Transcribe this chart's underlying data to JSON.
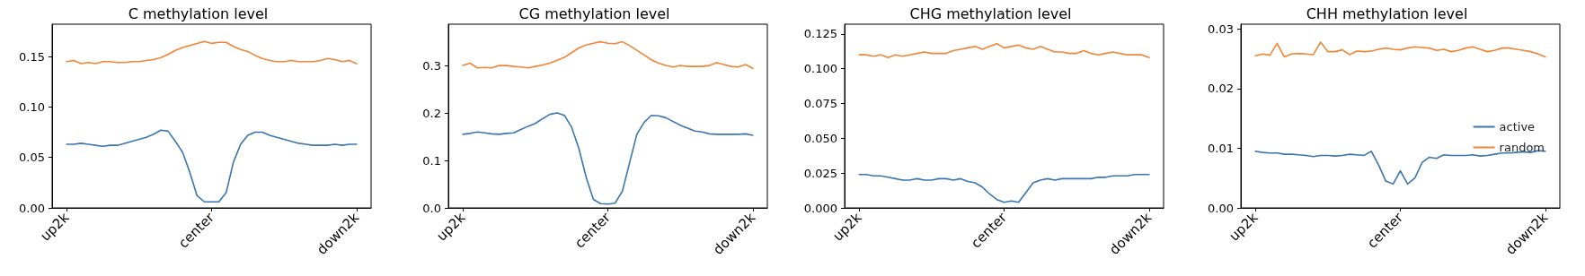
{
  "chart_data": [
    {
      "type": "line",
      "title": "C methylation level",
      "categories": [
        "up2k",
        null,
        null,
        null,
        null,
        null,
        null,
        null,
        null,
        null,
        null,
        null,
        null,
        null,
        null,
        null,
        null,
        null,
        null,
        null,
        "center",
        null,
        null,
        null,
        null,
        null,
        null,
        null,
        null,
        null,
        null,
        null,
        null,
        null,
        null,
        null,
        null,
        null,
        null,
        null,
        "down2k"
      ],
      "ylim": [
        0,
        0.182
      ],
      "yticks": [
        {
          "value": 0,
          "label": "0.00"
        },
        {
          "value": 0.05,
          "label": "0.05"
        },
        {
          "value": 0.1,
          "label": "0.10"
        },
        {
          "value": 0.15,
          "label": "0.15"
        }
      ],
      "grid": false,
      "legend": false,
      "marker": "none",
      "line_style": "solid",
      "series": [
        {
          "color": "#3a75b0",
          "values": [
            0.063,
            0.063,
            0.064,
            0.063,
            0.062,
            0.061,
            0.062,
            0.062,
            0.064,
            0.066,
            0.068,
            0.07,
            0.073,
            0.077,
            0.076,
            0.066,
            0.055,
            0.035,
            0.012,
            0.006,
            0.006,
            0.006,
            0.015,
            0.045,
            0.063,
            0.072,
            0.075,
            0.075,
            0.072,
            0.07,
            0.068,
            0.066,
            0.064,
            0.063,
            0.062,
            0.062,
            0.062,
            0.063,
            0.062,
            0.063,
            0.063
          ]
        },
        {
          "color": "#ef8535",
          "values": [
            0.145,
            0.146,
            0.143,
            0.144,
            0.143,
            0.145,
            0.145,
            0.144,
            0.144,
            0.145,
            0.145,
            0.146,
            0.147,
            0.149,
            0.152,
            0.156,
            0.159,
            0.161,
            0.163,
            0.165,
            0.163,
            0.164,
            0.164,
            0.16,
            0.157,
            0.155,
            0.151,
            0.148,
            0.146,
            0.145,
            0.145,
            0.146,
            0.145,
            0.145,
            0.145,
            0.146,
            0.148,
            0.147,
            0.145,
            0.146,
            0.143
          ]
        }
      ]
    },
    {
      "type": "line",
      "title": "CG methylation level",
      "categories": [
        "up2k",
        null,
        null,
        null,
        null,
        null,
        null,
        null,
        null,
        null,
        null,
        null,
        null,
        null,
        null,
        null,
        null,
        null,
        null,
        null,
        "center",
        null,
        null,
        null,
        null,
        null,
        null,
        null,
        null,
        null,
        null,
        null,
        null,
        null,
        null,
        null,
        null,
        null,
        null,
        null,
        "down2k"
      ],
      "ylim": [
        0,
        0.387
      ],
      "yticks": [
        {
          "value": 0,
          "label": "0.0"
        },
        {
          "value": 0.1,
          "label": "0.1"
        },
        {
          "value": 0.2,
          "label": "0.2"
        },
        {
          "value": 0.3,
          "label": "0.3"
        }
      ],
      "grid": false,
      "legend": false,
      "marker": "none",
      "line_style": "solid",
      "series": [
        {
          "color": "#3a75b0",
          "values": [
            0.155,
            0.157,
            0.16,
            0.158,
            0.156,
            0.155,
            0.157,
            0.158,
            0.165,
            0.172,
            0.178,
            0.188,
            0.197,
            0.2,
            0.195,
            0.17,
            0.125,
            0.065,
            0.018,
            0.009,
            0.008,
            0.01,
            0.035,
            0.095,
            0.155,
            0.18,
            0.195,
            0.194,
            0.19,
            0.182,
            0.174,
            0.168,
            0.162,
            0.16,
            0.156,
            0.155,
            0.155,
            0.155,
            0.155,
            0.156,
            0.153
          ]
        },
        {
          "color": "#ef8535",
          "values": [
            0.3,
            0.305,
            0.295,
            0.296,
            0.295,
            0.3,
            0.3,
            0.298,
            0.297,
            0.295,
            0.298,
            0.301,
            0.305,
            0.311,
            0.317,
            0.327,
            0.337,
            0.343,
            0.347,
            0.35,
            0.347,
            0.346,
            0.35,
            0.342,
            0.332,
            0.322,
            0.312,
            0.305,
            0.3,
            0.297,
            0.3,
            0.298,
            0.298,
            0.298,
            0.3,
            0.306,
            0.302,
            0.298,
            0.297,
            0.302,
            0.294
          ]
        }
      ]
    },
    {
      "type": "line",
      "title": "CHG methylation level",
      "categories": [
        "up2k",
        null,
        null,
        null,
        null,
        null,
        null,
        null,
        null,
        null,
        null,
        null,
        null,
        null,
        null,
        null,
        null,
        null,
        null,
        null,
        "center",
        null,
        null,
        null,
        null,
        null,
        null,
        null,
        null,
        null,
        null,
        null,
        null,
        null,
        null,
        null,
        null,
        null,
        null,
        null,
        "down2k"
      ],
      "ylim": [
        0,
        0.132
      ],
      "yticks": [
        {
          "value": 0,
          "label": "0.000"
        },
        {
          "value": 0.025,
          "label": "0.025"
        },
        {
          "value": 0.05,
          "label": "0.050"
        },
        {
          "value": 0.075,
          "label": "0.075"
        },
        {
          "value": 0.1,
          "label": "0.100"
        },
        {
          "value": 0.125,
          "label": "0.125"
        }
      ],
      "grid": false,
      "legend": false,
      "marker": "none",
      "line_style": "solid",
      "series": [
        {
          "color": "#3a75b0",
          "values": [
            0.024,
            0.024,
            0.023,
            0.023,
            0.022,
            0.021,
            0.02,
            0.02,
            0.021,
            0.02,
            0.02,
            0.021,
            0.021,
            0.02,
            0.021,
            0.019,
            0.018,
            0.015,
            0.01,
            0.006,
            0.004,
            0.005,
            0.004,
            0.011,
            0.018,
            0.02,
            0.021,
            0.02,
            0.021,
            0.021,
            0.021,
            0.021,
            0.021,
            0.022,
            0.022,
            0.023,
            0.023,
            0.023,
            0.024,
            0.024,
            0.024
          ]
        },
        {
          "color": "#ef8535",
          "values": [
            0.11,
            0.11,
            0.109,
            0.11,
            0.108,
            0.11,
            0.109,
            0.11,
            0.111,
            0.112,
            0.111,
            0.111,
            0.111,
            0.113,
            0.114,
            0.115,
            0.116,
            0.114,
            0.116,
            0.118,
            0.115,
            0.116,
            0.117,
            0.115,
            0.114,
            0.116,
            0.114,
            0.112,
            0.112,
            0.111,
            0.111,
            0.113,
            0.111,
            0.11,
            0.111,
            0.112,
            0.111,
            0.11,
            0.11,
            0.11,
            0.108
          ]
        }
      ]
    },
    {
      "type": "line",
      "title": "CHH methylation level",
      "categories": [
        "up2k",
        null,
        null,
        null,
        null,
        null,
        null,
        null,
        null,
        null,
        null,
        null,
        null,
        null,
        null,
        null,
        null,
        null,
        null,
        null,
        "center",
        null,
        null,
        null,
        null,
        null,
        null,
        null,
        null,
        null,
        null,
        null,
        null,
        null,
        null,
        null,
        null,
        null,
        null,
        null,
        "down2k"
      ],
      "ylim": [
        0,
        0.0308
      ],
      "yticks": [
        {
          "value": 0,
          "label": "0.00"
        },
        {
          "value": 0.01,
          "label": "0.01"
        },
        {
          "value": 0.02,
          "label": "0.02"
        },
        {
          "value": 0.03,
          "label": "0.03"
        }
      ],
      "grid": false,
      "legend": "right",
      "marker": "none",
      "line_style": "solid",
      "series": [
        {
          "name": "active",
          "color": "#3a75b0",
          "values": [
            0.0095,
            0.0093,
            0.0092,
            0.0092,
            0.009,
            0.009,
            0.0089,
            0.0088,
            0.0086,
            0.0088,
            0.0088,
            0.0087,
            0.0088,
            0.009,
            0.0089,
            0.0088,
            0.0095,
            0.0072,
            0.0045,
            0.004,
            0.0062,
            0.004,
            0.005,
            0.0076,
            0.0085,
            0.0083,
            0.0089,
            0.0088,
            0.0088,
            0.0088,
            0.0089,
            0.0087,
            0.0088,
            0.009,
            0.0092,
            0.0092,
            0.0093,
            0.0094,
            0.0093,
            0.0096,
            0.0095
          ]
        },
        {
          "name": "random",
          "color": "#ef8535",
          "values": [
            0.0255,
            0.0258,
            0.0256,
            0.0276,
            0.0253,
            0.0258,
            0.0259,
            0.0258,
            0.0257,
            0.0278,
            0.0262,
            0.0262,
            0.0265,
            0.0257,
            0.0263,
            0.0262,
            0.0263,
            0.0266,
            0.0268,
            0.0266,
            0.0265,
            0.0268,
            0.027,
            0.0269,
            0.0268,
            0.0264,
            0.0266,
            0.0262,
            0.0264,
            0.0268,
            0.027,
            0.0266,
            0.0262,
            0.0264,
            0.0268,
            0.0268,
            0.0266,
            0.0264,
            0.0262,
            0.0258,
            0.0253
          ]
        }
      ]
    }
  ]
}
